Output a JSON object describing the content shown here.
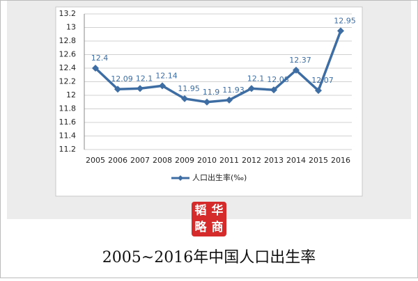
{
  "chart_data": {
    "type": "line",
    "title": "2005~2016年中国人口出生率",
    "logo": [
      "韬",
      "华",
      "略",
      "商"
    ],
    "categories": [
      "2005",
      "2006",
      "2007",
      "2008",
      "2009",
      "2010",
      "2011",
      "2012",
      "2013",
      "2014",
      "2015",
      "2016"
    ],
    "series": [
      {
        "name": "人口出生率(‰)",
        "color": "#3d6da3",
        "values": [
          12.4,
          12.09,
          12.1,
          12.14,
          11.95,
          11.9,
          11.93,
          12.1,
          12.08,
          12.37,
          12.07,
          12.95
        ]
      }
    ],
    "ylim": [
      11.2,
      13.2
    ],
    "yticks": [
      11.2,
      11.4,
      11.6,
      11.8,
      12,
      12.2,
      12.4,
      12.6,
      12.8,
      13,
      13.2
    ],
    "grid": true
  }
}
